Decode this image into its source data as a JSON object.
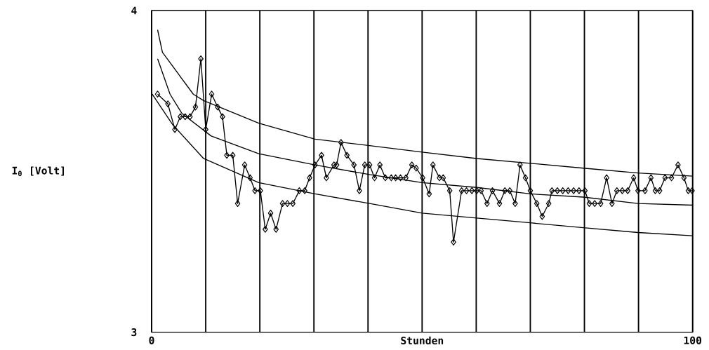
{
  "chart_data": {
    "type": "line",
    "xlabel": "Stunden",
    "ylabel": "I$_{0}$ [Volt]",
    "xlim": [
      0,
      100
    ],
    "ylim": [
      3,
      4
    ],
    "xticks": [
      0,
      {
        "value": 10,
        "label": null
      },
      {
        "value": 20,
        "label": null
      },
      {
        "value": 30,
        "label": null
      },
      {
        "value": 40,
        "label": null
      },
      {
        "value": 50,
        "label": null
      },
      {
        "value": 60,
        "label": null
      },
      {
        "value": 70,
        "label": null
      },
      {
        "value": 80,
        "label": null
      },
      {
        "value": 90,
        "label": null
      },
      100
    ],
    "yticks": [
      3,
      4
    ],
    "grid": "x",
    "series": [
      {
        "marker": "diamond",
        "color": "#000000",
        "x": [
          1.1,
          3.0,
          4.3,
          5.3,
          6.2,
          7.1,
          8.1,
          9.1,
          10.0,
          11.1,
          12.2,
          13.1,
          13.9,
          15.0,
          15.9,
          17.2,
          18.2,
          19.1,
          20.1,
          21.0,
          22.0,
          23.0,
          24.2,
          25.1,
          26.1,
          27.3,
          28.3,
          29.2,
          30.2,
          31.4,
          32.3,
          33.7,
          34.2,
          35.0,
          36.1,
          37.4,
          38.4,
          39.4,
          40.3,
          41.2,
          42.2,
          43.2,
          44.3,
          45.1,
          46.0,
          47.0,
          48.1,
          48.9,
          50.1,
          51.3,
          52.0,
          53.2,
          53.9,
          55.1,
          55.8,
          57.3,
          58.2,
          59.2,
          60.1,
          60.9,
          62.0,
          63.0,
          64.3,
          65.3,
          66.2,
          67.2,
          68.1,
          69.1,
          70.0,
          71.2,
          72.2,
          73.4,
          74.0,
          75.0,
          76.0,
          77.0,
          78.0,
          79.0,
          80.1,
          80.9,
          81.9,
          83.0,
          84.1,
          85.1,
          86.0,
          87.0,
          88.0,
          89.1,
          89.9,
          91.2,
          92.3,
          93.1,
          93.9,
          94.9,
          96.1,
          97.3,
          98.4,
          99.2,
          99.9
        ],
        "values": [
          3.74,
          3.71,
          3.63,
          3.67,
          3.67,
          3.67,
          3.7,
          3.85,
          3.63,
          3.74,
          3.7,
          3.67,
          3.55,
          3.55,
          3.4,
          3.52,
          3.48,
          3.44,
          3.44,
          3.32,
          3.37,
          3.32,
          3.4,
          3.4,
          3.4,
          3.44,
          3.44,
          3.48,
          3.52,
          3.55,
          3.48,
          3.52,
          3.52,
          3.59,
          3.55,
          3.52,
          3.44,
          3.52,
          3.52,
          3.48,
          3.52,
          3.48,
          3.48,
          3.48,
          3.48,
          3.48,
          3.52,
          3.51,
          3.48,
          3.43,
          3.52,
          3.48,
          3.48,
          3.44,
          3.28,
          3.44,
          3.44,
          3.44,
          3.44,
          3.44,
          3.4,
          3.44,
          3.4,
          3.44,
          3.44,
          3.4,
          3.52,
          3.48,
          3.44,
          3.4,
          3.36,
          3.4,
          3.44,
          3.44,
          3.44,
          3.44,
          3.44,
          3.44,
          3.44,
          3.4,
          3.4,
          3.4,
          3.48,
          3.4,
          3.44,
          3.44,
          3.44,
          3.48,
          3.44,
          3.44,
          3.48,
          3.44,
          3.44,
          3.48,
          3.48,
          3.52,
          3.48,
          3.44,
          3.44
        ]
      },
      {
        "marker": "none",
        "color": "#000000",
        "x": [
          1.1,
          2.0,
          7.7,
          9.6,
          19.8,
          30.2,
          40.3,
          50.0,
          60.1,
          70.0,
          79.8,
          89.9,
          100
        ],
        "values": [
          3.94,
          3.87,
          3.74,
          3.72,
          3.65,
          3.6,
          3.58,
          3.56,
          3.54,
          3.525,
          3.51,
          3.495,
          3.485
        ]
      },
      {
        "marker": "none",
        "color": "#000000",
        "x": [
          1.1,
          3.4,
          5.6,
          11.0,
          19.8,
          30.2,
          40.3,
          50.0,
          60.1,
          70.0,
          79.8,
          89.9,
          100
        ],
        "values": [
          3.85,
          3.74,
          3.68,
          3.61,
          3.555,
          3.52,
          3.49,
          3.465,
          3.45,
          3.43,
          3.42,
          3.4,
          3.395
        ]
      },
      {
        "marker": "none",
        "color": "#000000",
        "x": [
          0.1,
          3.9,
          9.6,
          19.8,
          30.2,
          40.3,
          50.0,
          60.1,
          70.0,
          79.8,
          89.9,
          100
        ],
        "values": [
          3.74,
          3.645,
          3.54,
          3.465,
          3.43,
          3.4,
          3.37,
          3.355,
          3.34,
          3.325,
          3.31,
          3.3
        ]
      }
    ]
  }
}
